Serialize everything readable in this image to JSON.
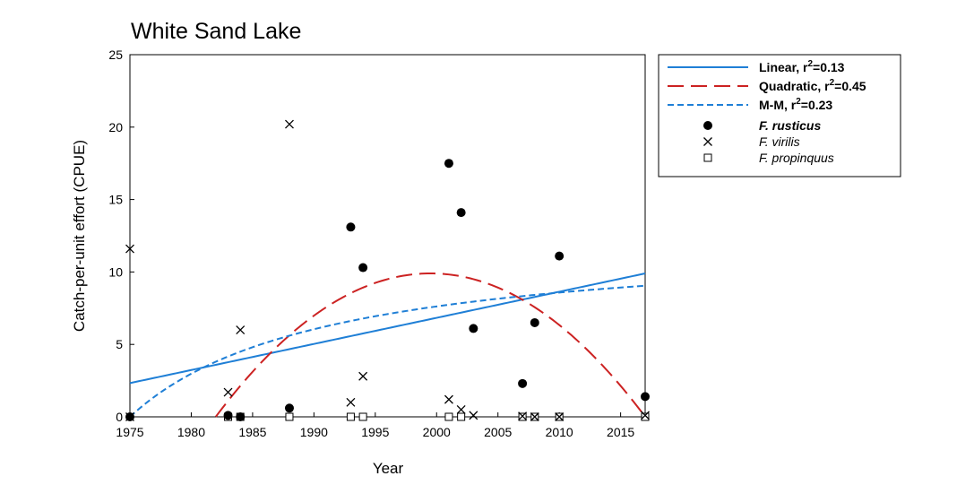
{
  "chart_data": {
    "type": "scatter",
    "title": "White Sand Lake",
    "xlabel": "Year",
    "ylabel": "Catch-per-unit effort (CPUE)",
    "xlim": [
      1975,
      2017
    ],
    "ylim": [
      0,
      25
    ],
    "xticks": [
      1975,
      1980,
      1985,
      1990,
      1995,
      2000,
      2005,
      2010,
      2015
    ],
    "yticks": [
      0,
      5,
      10,
      15,
      20,
      25
    ],
    "legend_position": "right",
    "grid": false,
    "fits": [
      {
        "label": "Linear, r",
        "sup": "2",
        "stat": "=0.13",
        "color": "#1f7fd6",
        "style": "solid",
        "model": "linear",
        "params": {
          "a": 2.33,
          "b": 0.1802
        }
      },
      {
        "label": "Quadratic, r",
        "sup": "2",
        "stat": "=0.45",
        "color": "#cc2222",
        "style": "long-dash",
        "model": "quadratic",
        "params": {
          "peak_x": 1999.5,
          "peak_y": 9.9,
          "k": 0.0323
        }
      },
      {
        "label": "M-M, r",
        "sup": "2",
        "stat": "=0.23",
        "color": "#1f7fd6",
        "style": "short-dash",
        "model": "michaelis-menten",
        "params": {
          "vmax": 12.5,
          "km": 16
        }
      }
    ],
    "series": [
      {
        "name": "F. rusticus",
        "marker": "filled-circle",
        "x": [
          1975,
          1983,
          1984,
          1988,
          1993,
          1994,
          2001,
          2002,
          2003,
          2007,
          2008,
          2010,
          2017
        ],
        "y": [
          0,
          0.1,
          0,
          0.6,
          13.1,
          10.3,
          17.5,
          14.1,
          6.1,
          2.3,
          6.5,
          11.1,
          1.4
        ]
      },
      {
        "name": "F. virilis",
        "marker": "x",
        "x": [
          1975,
          1975,
          1983,
          1984,
          1988,
          1993,
          1994,
          2001,
          2002,
          2003,
          2007,
          2008,
          2010,
          2017
        ],
        "y": [
          11.6,
          0,
          1.7,
          6.0,
          20.2,
          1.0,
          2.8,
          1.2,
          0.5,
          0.1,
          0.05,
          0,
          0,
          0.1
        ]
      },
      {
        "name": "F. propinquus",
        "marker": "open-square",
        "x": [
          1983,
          1984,
          1988,
          1993,
          1994,
          2001,
          2002,
          2007,
          2008,
          2010,
          2017
        ],
        "y": [
          0,
          0,
          0,
          0,
          0,
          0,
          0,
          0,
          0,
          0,
          0
        ]
      }
    ]
  }
}
